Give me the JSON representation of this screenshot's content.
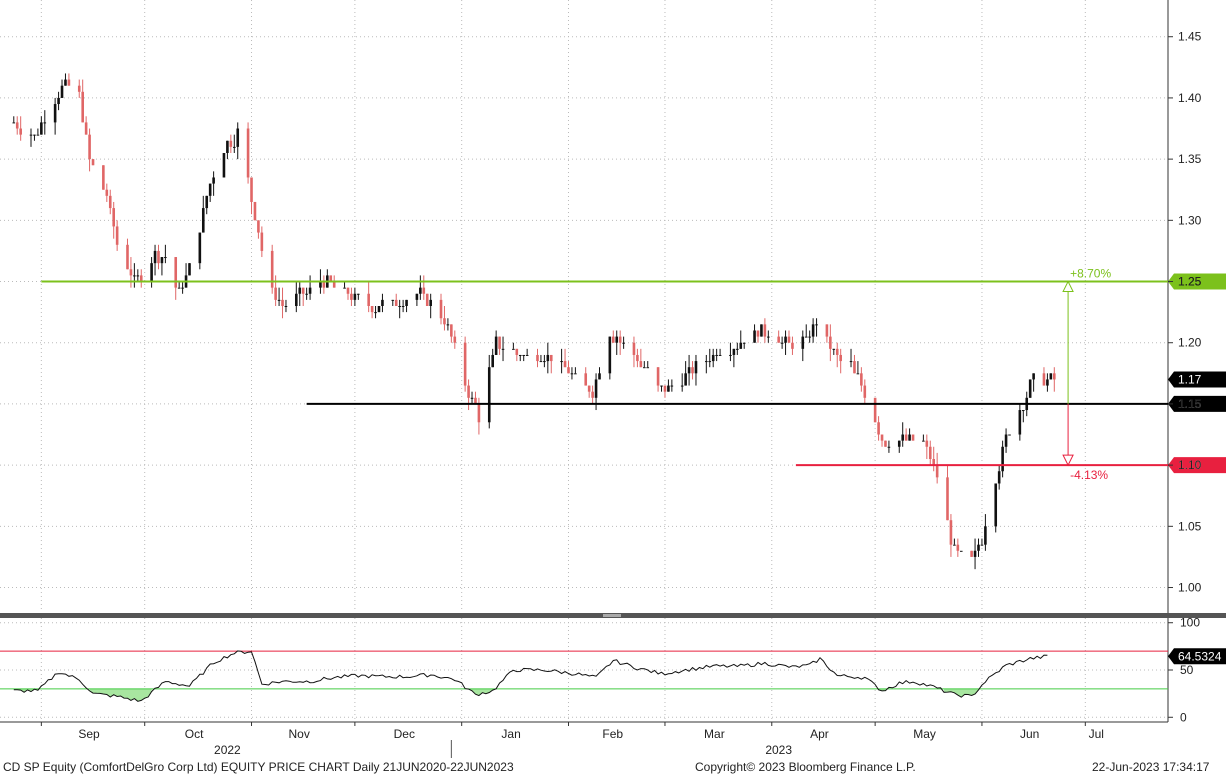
{
  "chart_data": [
    {
      "type": "candlestick",
      "panel": "price",
      "ylim": [
        0.98,
        1.48
      ],
      "yticks": [
        1.0,
        1.05,
        1.1,
        1.15,
        1.2,
        1.25,
        1.3,
        1.35,
        1.4,
        1.45
      ],
      "ytick_labels": [
        "1.00",
        "1.05",
        "1.10",
        "1.15",
        "1.20",
        "1.25",
        "1.30",
        "1.35",
        "1.40",
        "1.45"
      ],
      "grid": true,
      "price_anchors": [
        [
          "2022-08-24",
          1.38
        ],
        [
          "2022-08-30",
          1.37
        ],
        [
          "2022-09-05",
          1.4
        ],
        [
          "2022-09-08",
          1.41
        ],
        [
          "2022-09-12",
          1.4
        ],
        [
          "2022-09-15",
          1.35
        ],
        [
          "2022-09-20",
          1.32
        ],
        [
          "2022-09-23",
          1.28
        ],
        [
          "2022-09-28",
          1.25
        ],
        [
          "2022-10-03",
          1.27
        ],
        [
          "2022-10-07",
          1.27
        ],
        [
          "2022-10-11",
          1.24
        ],
        [
          "2022-10-14",
          1.26
        ],
        [
          "2022-10-19",
          1.32
        ],
        [
          "2022-10-24",
          1.36
        ],
        [
          "2022-10-28",
          1.37
        ],
        [
          "2022-11-03",
          1.29
        ],
        [
          "2022-11-07",
          1.24
        ],
        [
          "2022-11-11",
          1.23
        ],
        [
          "2022-11-16",
          1.24
        ],
        [
          "2022-11-22",
          1.25
        ],
        [
          "2022-11-29",
          1.24
        ],
        [
          "2022-12-05",
          1.23
        ],
        [
          "2022-12-12",
          1.23
        ],
        [
          "2022-12-20",
          1.24
        ],
        [
          "2022-12-27",
          1.22
        ],
        [
          "2023-01-03",
          1.16
        ],
        [
          "2023-01-06",
          1.14
        ],
        [
          "2023-01-11",
          1.2
        ],
        [
          "2023-01-18",
          1.19
        ],
        [
          "2023-01-27",
          1.19
        ],
        [
          "2023-02-03",
          1.17
        ],
        [
          "2023-02-08",
          1.16
        ],
        [
          "2023-02-13",
          1.21
        ],
        [
          "2023-02-20",
          1.19
        ],
        [
          "2023-02-28",
          1.16
        ],
        [
          "2023-03-06",
          1.17
        ],
        [
          "2023-03-14",
          1.19
        ],
        [
          "2023-03-22",
          1.2
        ],
        [
          "2023-03-29",
          1.21
        ],
        [
          "2023-04-05",
          1.2
        ],
        [
          "2023-04-11",
          1.2
        ],
        [
          "2023-04-14",
          1.22
        ],
        [
          "2023-04-19",
          1.19
        ],
        [
          "2023-04-24",
          1.18
        ],
        [
          "2023-04-28",
          1.16
        ],
        [
          "2023-05-03",
          1.12
        ],
        [
          "2023-05-09",
          1.12
        ],
        [
          "2023-05-15",
          1.12
        ],
        [
          "2023-05-19",
          1.09
        ],
        [
          "2023-05-24",
          1.03
        ],
        [
          "2023-05-29",
          1.02
        ],
        [
          "2023-06-01",
          1.04
        ],
        [
          "2023-06-05",
          1.09
        ],
        [
          "2023-06-09",
          1.13
        ],
        [
          "2023-06-13",
          1.15
        ],
        [
          "2023-06-16",
          1.17
        ],
        [
          "2023-06-22",
          1.17
        ]
      ],
      "levels": [
        {
          "name": "resistance",
          "value": 1.25,
          "label": "1.25",
          "color": "#7cc11c",
          "from_date": "2022-09-01"
        },
        {
          "name": "current-support",
          "value": 1.15,
          "label": "1.15",
          "color": "#000000",
          "from_date": "2022-11-17"
        },
        {
          "name": "support",
          "value": 1.1,
          "label": "1.10",
          "color": "#e8203f",
          "from_date": "2023-04-08"
        }
      ],
      "last_price": {
        "value": 1.17,
        "label": "1.17"
      },
      "annotations": [
        {
          "name": "upside",
          "text": "+8.70%",
          "from": 1.15,
          "to": 1.25,
          "date": "2023-06-26",
          "color": "#7cc11c"
        },
        {
          "name": "downside",
          "text": "-4.13%",
          "from": 1.15,
          "to": 1.1,
          "date": "2023-06-26",
          "color": "#e8203f"
        }
      ]
    },
    {
      "type": "line",
      "panel": "oscillator",
      "ylim": [
        -5,
        105
      ],
      "yticks": [
        0,
        50,
        100
      ],
      "ytick_labels": [
        "0",
        "50",
        "100"
      ],
      "overbought": 70,
      "oversold": 30,
      "last_value": {
        "value": 64.5324,
        "label": "64.5324"
      },
      "rsi_anchors": [
        [
          "2022-08-24",
          28
        ],
        [
          "2022-08-31",
          28
        ],
        [
          "2022-09-06",
          48
        ],
        [
          "2022-09-12",
          40
        ],
        [
          "2022-09-16",
          25
        ],
        [
          "2022-09-23",
          22
        ],
        [
          "2022-09-30",
          17
        ],
        [
          "2022-10-07",
          38
        ],
        [
          "2022-10-14",
          33
        ],
        [
          "2022-10-21",
          58
        ],
        [
          "2022-10-27",
          68
        ],
        [
          "2022-11-01",
          70
        ],
        [
          "2022-11-04",
          35
        ],
        [
          "2022-11-10",
          38
        ],
        [
          "2022-11-18",
          38
        ],
        [
          "2022-11-25",
          42
        ],
        [
          "2022-12-02",
          44
        ],
        [
          "2022-12-09",
          43
        ],
        [
          "2022-12-16",
          43
        ],
        [
          "2022-12-23",
          45
        ],
        [
          "2022-12-30",
          40
        ],
        [
          "2023-01-05",
          24
        ],
        [
          "2023-01-10",
          28
        ],
        [
          "2023-01-16",
          50
        ],
        [
          "2023-01-25",
          50
        ],
        [
          "2023-02-03",
          46
        ],
        [
          "2023-02-09",
          42
        ],
        [
          "2023-02-14",
          60
        ],
        [
          "2023-02-21",
          52
        ],
        [
          "2023-02-28",
          46
        ],
        [
          "2023-03-07",
          50
        ],
        [
          "2023-03-15",
          54
        ],
        [
          "2023-03-22",
          54
        ],
        [
          "2023-03-30",
          57
        ],
        [
          "2023-04-07",
          53
        ],
        [
          "2023-04-12",
          55
        ],
        [
          "2023-04-15",
          62
        ],
        [
          "2023-04-20",
          44
        ],
        [
          "2023-04-28",
          42
        ],
        [
          "2023-05-03",
          28
        ],
        [
          "2023-05-08",
          36
        ],
        [
          "2023-05-12",
          38
        ],
        [
          "2023-05-18",
          32
        ],
        [
          "2023-05-24",
          24
        ],
        [
          "2023-05-29",
          22
        ],
        [
          "2023-06-02",
          38
        ],
        [
          "2023-06-08",
          55
        ],
        [
          "2023-06-15",
          62
        ],
        [
          "2023-06-20",
          64.5
        ]
      ]
    }
  ],
  "x_axis": {
    "range": [
      "2022-08-20",
      "2023-07-25"
    ],
    "months": [
      {
        "label": "Sep",
        "date": "2022-09-01"
      },
      {
        "label": "Oct",
        "date": "2022-10-01"
      },
      {
        "label": "Nov",
        "date": "2022-11-01"
      },
      {
        "label": "Dec",
        "date": "2022-12-01"
      },
      {
        "label": "Jan",
        "date": "2023-01-01"
      },
      {
        "label": "Feb",
        "date": "2023-02-01"
      },
      {
        "label": "Mar",
        "date": "2023-03-01"
      },
      {
        "label": "Apr",
        "date": "2023-04-01"
      },
      {
        "label": "May",
        "date": "2023-05-01"
      },
      {
        "label": "Jun",
        "date": "2023-06-01"
      },
      {
        "label": "Jul",
        "date": "2023-07-01"
      }
    ],
    "years": [
      {
        "label": "2022",
        "date": "2022-10-25"
      },
      {
        "label": "2023",
        "date": "2023-04-03"
      }
    ],
    "year_separator": "2022-12-29"
  },
  "footer": {
    "left": "CD SP Equity (ComfortDelGro Corp Ltd) EQUITY PRICE CHART  Daily 21JUN2020-22JUN2023",
    "center": "Copyright© 2023 Bloomberg Finance L.P.",
    "right": "22-Jun-2023 17:34:17"
  },
  "colors": {
    "up": "#111111",
    "down": "#e06666",
    "grid": "#bbbbbb",
    "panel_divider": "#666666",
    "oversold_fill": "#a8e6a0",
    "rsi_line": "#111111"
  }
}
